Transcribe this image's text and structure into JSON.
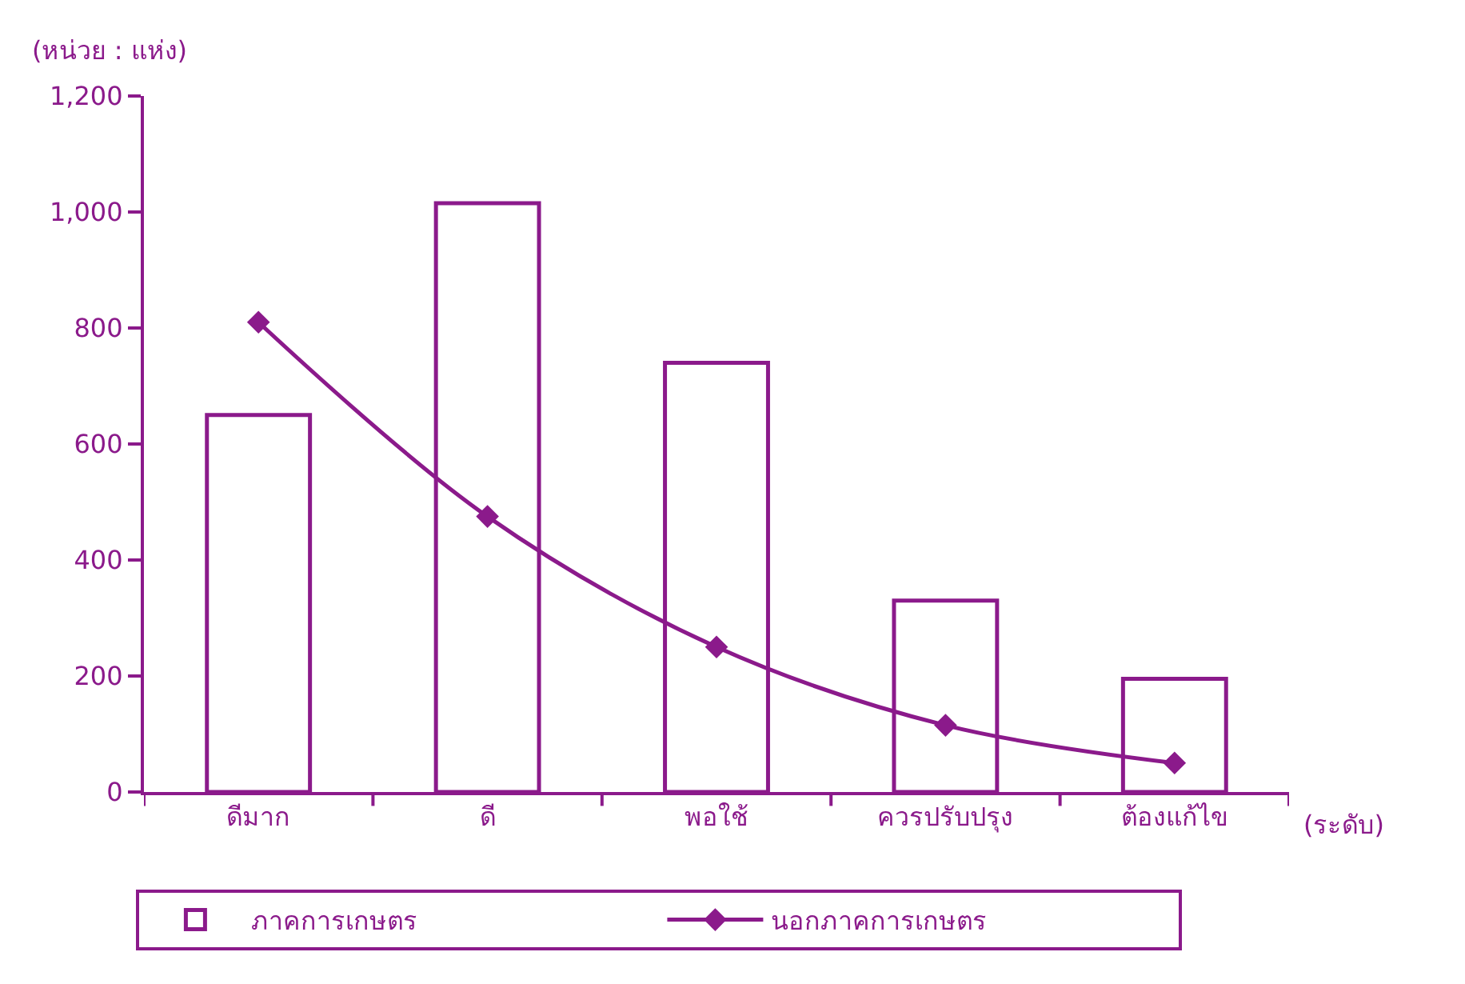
{
  "chart_data": {
    "type": "bar",
    "ylabel": "(หน่วย : แห่ง)",
    "xlabel": "(ระดับ)",
    "categories": [
      "ดีมาก",
      "ดี",
      "พอใช้",
      "ควรปรับปรุง",
      "ต้องแก้ไข"
    ],
    "series": [
      {
        "name": "ภาคการเกษตร",
        "color": "#8b1a8b",
        "values": [
          650,
          1015,
          740,
          330,
          195
        ]
      },
      {
        "name": "นอกภาคการเกษตร",
        "type": "line",
        "color": "#8b1a8b",
        "values": [
          810,
          475,
          250,
          115,
          50
        ]
      }
    ],
    "ylim": [
      0,
      1200
    ],
    "yticks": [
      0,
      200,
      400,
      600,
      800,
      {
        "value": 1000,
        "label": "1,000"
      },
      {
        "value": 1200,
        "label": "1,200"
      }
    ],
    "legend": "bottom",
    "marker": "diamond",
    "line_style": "solid"
  }
}
